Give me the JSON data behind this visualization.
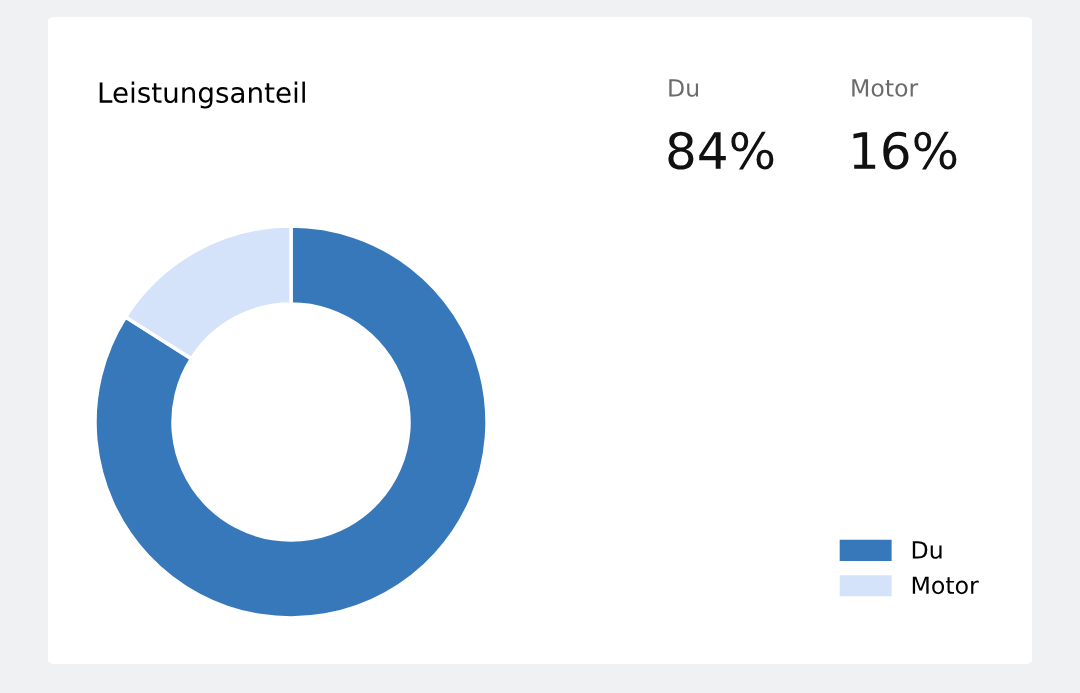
{
  "chart_data": {
    "type": "donut",
    "title": "Leistungsanteil",
    "categories": [
      "Du",
      "Motor"
    ],
    "values": [
      84,
      16
    ],
    "colors": [
      "#3778bb",
      "#d4e3f9"
    ],
    "annotations": [
      "84%",
      "16%"
    ],
    "legend": "bottom right"
  }
}
